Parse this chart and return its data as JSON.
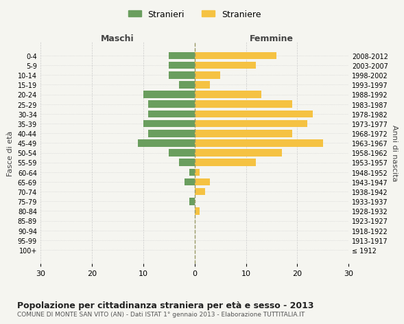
{
  "age_groups": [
    "100+",
    "95-99",
    "90-94",
    "85-89",
    "80-84",
    "75-79",
    "70-74",
    "65-69",
    "60-64",
    "55-59",
    "50-54",
    "45-49",
    "40-44",
    "35-39",
    "30-34",
    "25-29",
    "20-24",
    "15-19",
    "10-14",
    "5-9",
    "0-4"
  ],
  "birth_years": [
    "≤ 1912",
    "1913-1917",
    "1918-1922",
    "1923-1927",
    "1928-1932",
    "1933-1937",
    "1938-1942",
    "1943-1947",
    "1948-1952",
    "1953-1957",
    "1958-1962",
    "1963-1967",
    "1968-1972",
    "1973-1977",
    "1978-1982",
    "1983-1987",
    "1988-1992",
    "1993-1997",
    "1998-2002",
    "2003-2007",
    "2008-2012"
  ],
  "males": [
    0,
    0,
    0,
    0,
    0,
    1,
    0,
    2,
    1,
    3,
    5,
    11,
    9,
    10,
    9,
    9,
    10,
    3,
    5,
    5,
    5
  ],
  "females": [
    0,
    0,
    0,
    0,
    1,
    0,
    2,
    3,
    1,
    12,
    17,
    25,
    19,
    22,
    23,
    19,
    13,
    3,
    5,
    12,
    16
  ],
  "male_color": "#6a9e5e",
  "female_color": "#f5c242",
  "background_color": "#f5f5f0",
  "grid_color": "#cccccc",
  "xlim": 30,
  "title": "Popolazione per cittadinanza straniera per età e sesso - 2013",
  "subtitle": "COMUNE DI MONTE SAN VITO (AN) - Dati ISTAT 1° gennaio 2013 - Elaborazione TUTTITALIA.IT",
  "left_label": "Maschi",
  "right_label": "Femmine",
  "y_label_left": "Fasce di età",
  "y_label_right": "Anni di nascita",
  "legend_male": "Stranieri",
  "legend_female": "Straniere"
}
